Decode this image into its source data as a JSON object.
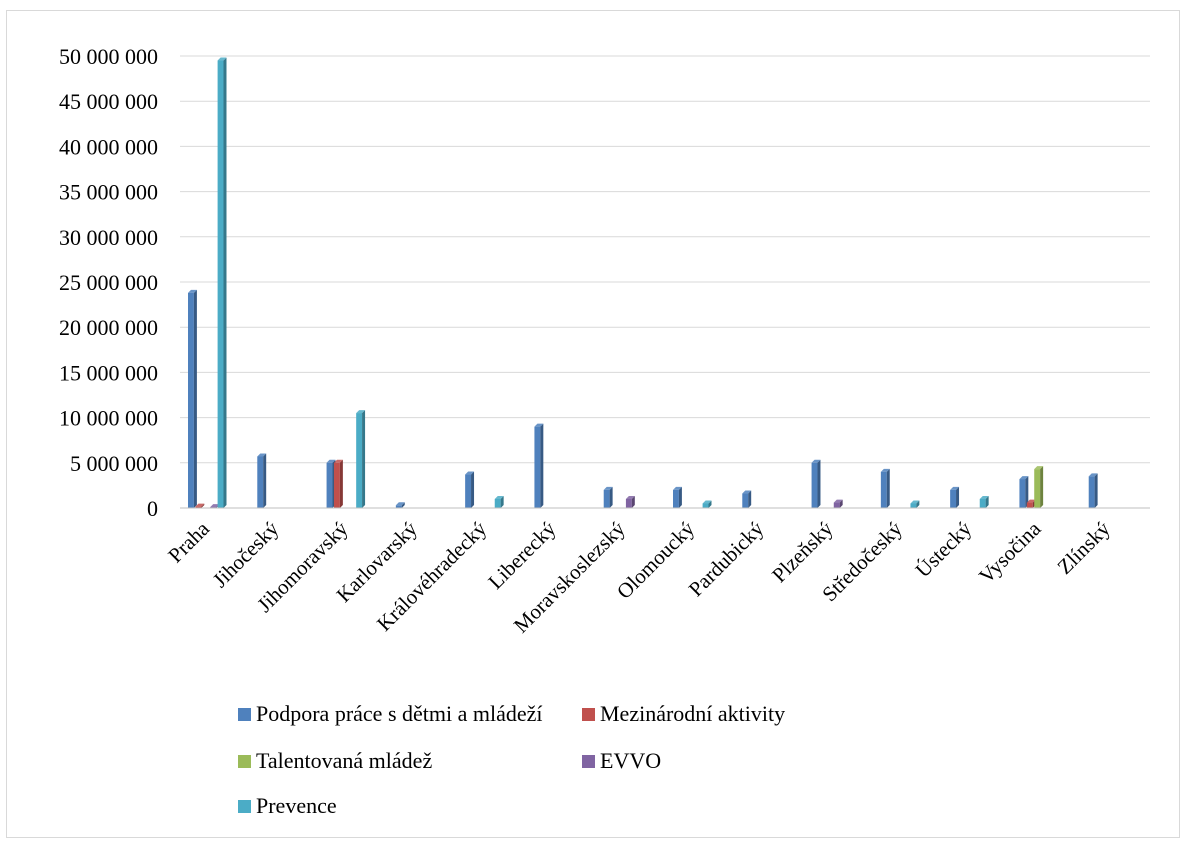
{
  "chart_data": {
    "type": "bar",
    "title": "",
    "xlabel": "",
    "ylabel": "",
    "ylim": [
      0,
      50000000
    ],
    "y_ticks": [
      0,
      5000000,
      10000000,
      15000000,
      20000000,
      25000000,
      30000000,
      35000000,
      40000000,
      45000000,
      50000000
    ],
    "y_tick_labels": [
      "0",
      "5 000 000",
      "10 000 000",
      "15 000 000",
      "20 000 000",
      "25 000 000",
      "30 000 000",
      "35 000 000",
      "40 000 000",
      "45 000 000",
      "50 000 000"
    ],
    "grid": true,
    "legend_position": "bottom",
    "categories": [
      "Praha",
      "Jihočeský",
      "Jihomoravský",
      "Karlovarský",
      "Královéhradecký",
      "Liberecký",
      "Moravskoslezský",
      "Olomoucký",
      "Pardubický",
      "Plzeňský",
      "Středočeský",
      "Ústecký",
      "Vysočina",
      "Zlínský"
    ],
    "series": [
      {
        "name": "Podpora práce s dětmi a mládeží",
        "color": "#4f81bd",
        "values": [
          23800000,
          5700000,
          5000000,
          300000,
          3700000,
          9000000,
          2000000,
          2000000,
          1600000,
          5000000,
          4000000,
          2000000,
          3200000,
          3500000
        ]
      },
      {
        "name": "Mezinárodní aktivity",
        "color": "#c0504d",
        "values": [
          150000,
          0,
          5000000,
          0,
          0,
          0,
          0,
          0,
          0,
          0,
          0,
          0,
          600000,
          0
        ]
      },
      {
        "name": "Talentovaná mládež",
        "color": "#9bbb59",
        "values": [
          0,
          0,
          0,
          0,
          0,
          0,
          0,
          0,
          0,
          0,
          0,
          0,
          4300000,
          0
        ]
      },
      {
        "name": "EVVO",
        "color": "#8064a2",
        "values": [
          100000,
          0,
          0,
          0,
          0,
          0,
          1000000,
          0,
          0,
          600000,
          0,
          0,
          0,
          0
        ]
      },
      {
        "name": "Prevence",
        "color": "#4bacc6",
        "values": [
          49500000,
          0,
          10500000,
          0,
          1000000,
          0,
          0,
          500000,
          0,
          0,
          500000,
          1000000,
          0,
          0
        ]
      }
    ]
  }
}
